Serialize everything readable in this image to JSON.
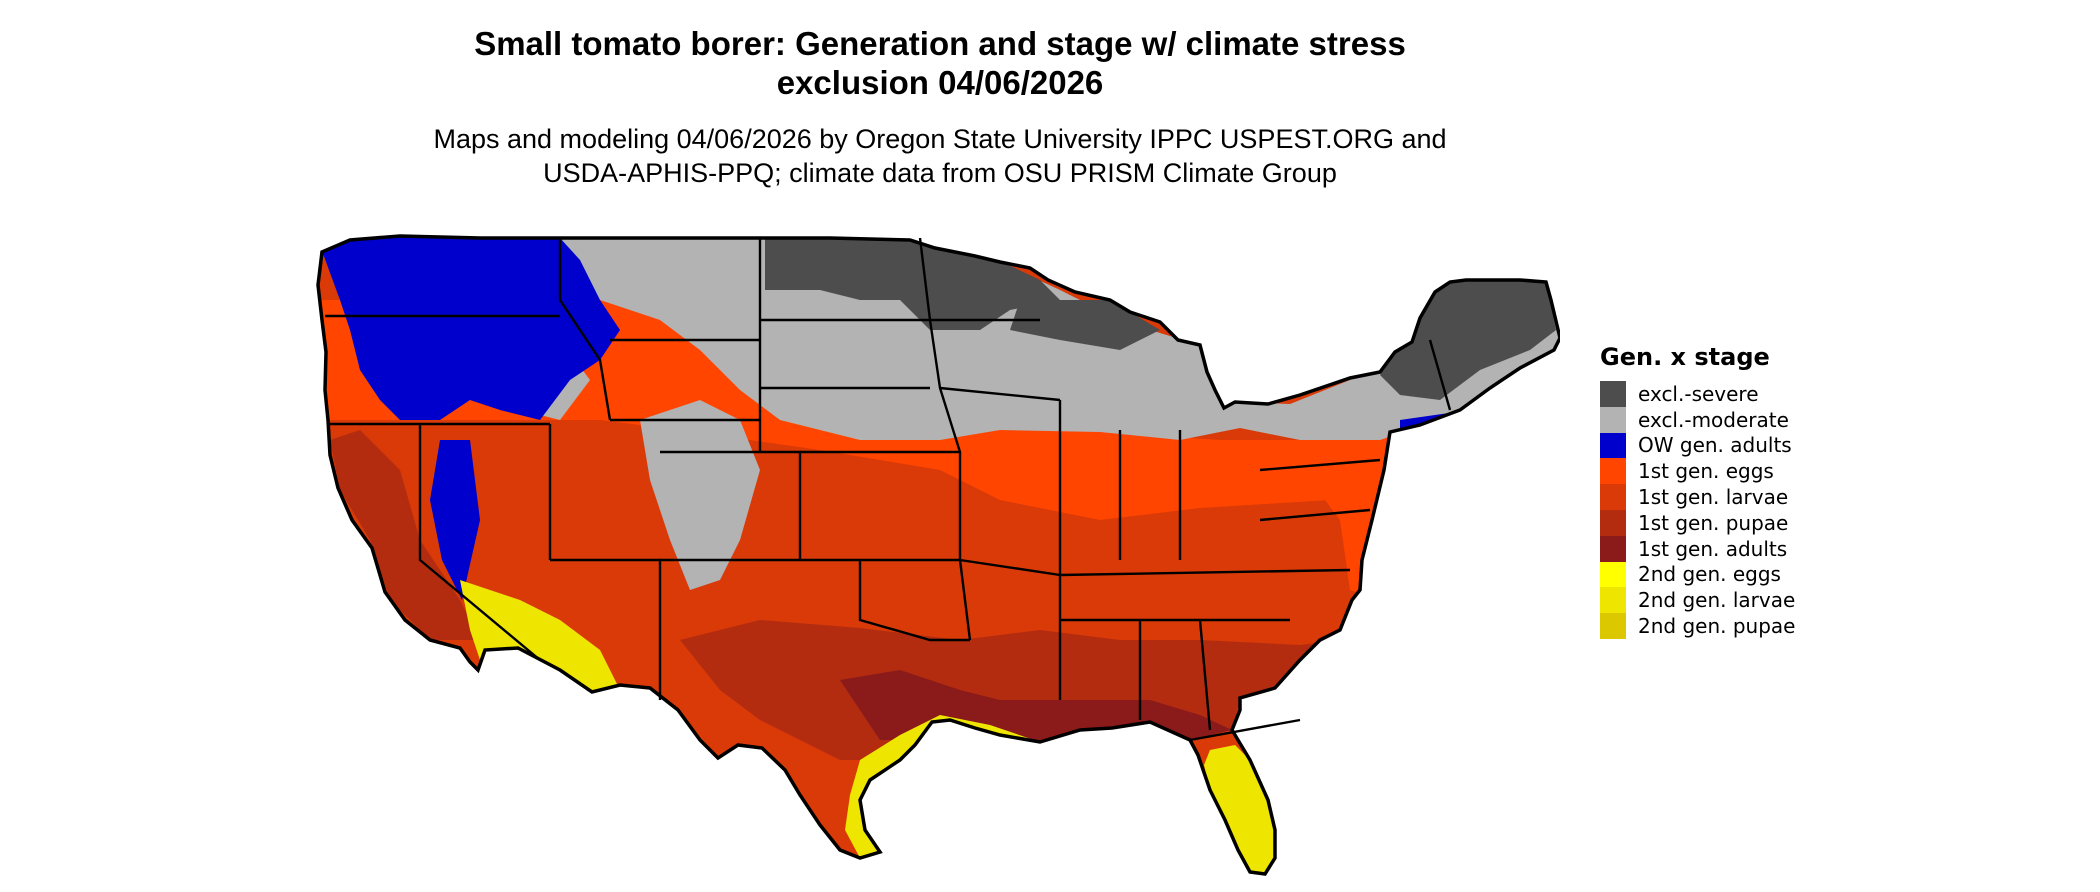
{
  "title": {
    "line1": "Small tomato borer: Generation and stage w/ climate stress",
    "line2": "exclusion 04/06/2026"
  },
  "subtitle": {
    "line1": "Maps and modeling 04/06/2026 by Oregon State University IPPC USPEST.ORG and",
    "line2": "USDA-APHIS-PPQ; climate data from OSU PRISM Climate Group"
  },
  "legend": {
    "title": "Gen. x stage",
    "items": [
      {
        "label": "excl.-severe",
        "color": "#4d4d4d"
      },
      {
        "label": "excl.-moderate",
        "color": "#b3b3b3"
      },
      {
        "label": "OW gen. adults",
        "color": "#0000cd"
      },
      {
        "label": "1st gen. eggs",
        "color": "#ff4500"
      },
      {
        "label": "1st gen. larvae",
        "color": "#d93a08"
      },
      {
        "label": "1st gen. pupae",
        "color": "#b32c10"
      },
      {
        "label": "1st gen. adults",
        "color": "#8b1a1a"
      },
      {
        "label": "2nd gen. eggs",
        "color": "#ffff00"
      },
      {
        "label": "2nd gen. larvae",
        "color": "#eee600"
      },
      {
        "label": "2nd gen. pupae",
        "color": "#dcc800"
      }
    ]
  },
  "map": {
    "region": "contiguous-united-states",
    "outline_color": "#000000"
  }
}
